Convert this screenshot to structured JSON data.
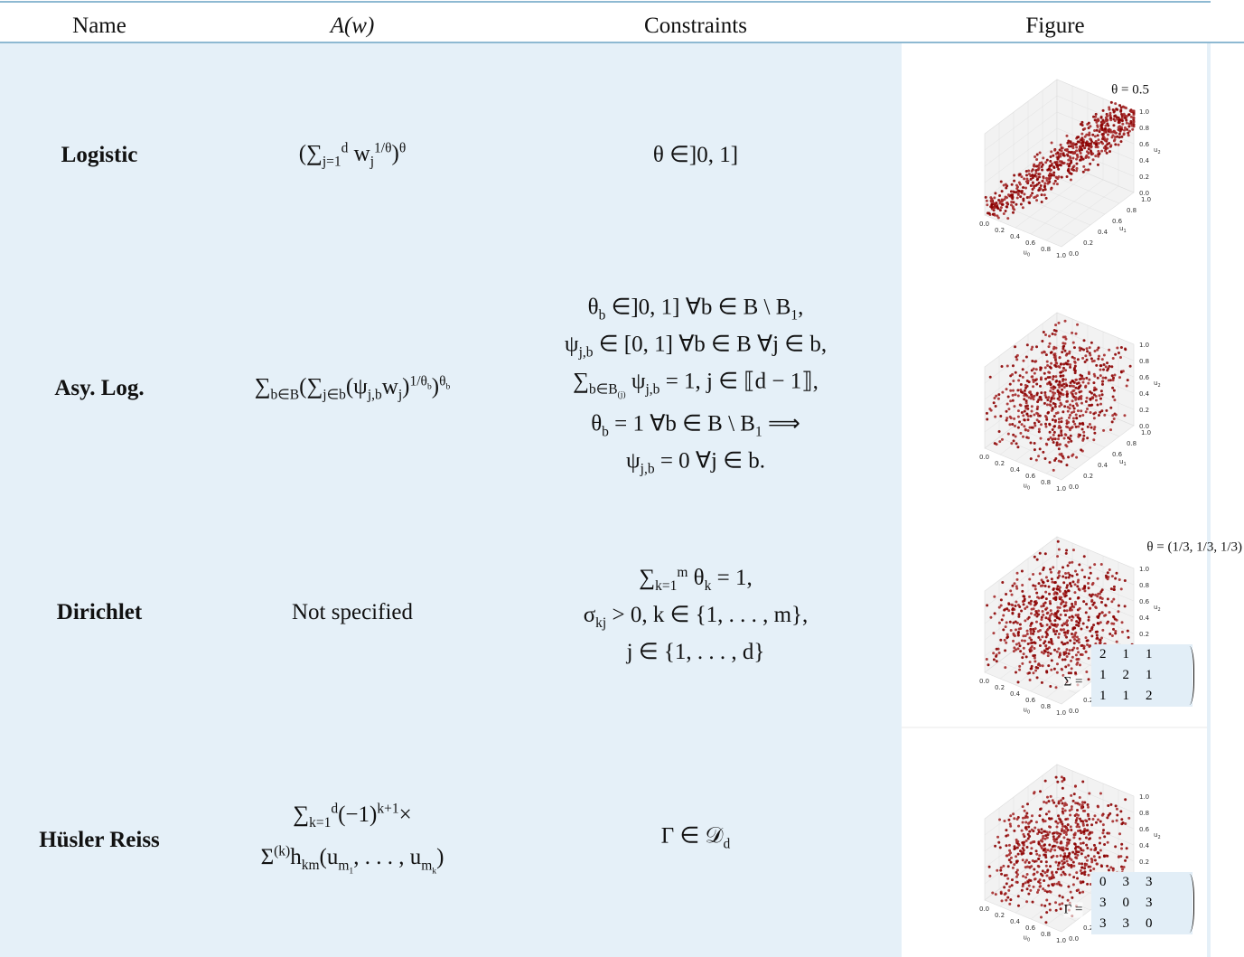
{
  "header": [
    "Name",
    "A(w)",
    "Constraints",
    "Figure"
  ],
  "rows": [
    {
      "name": "Logistic",
      "a": [
        [
          "(",
          "∑",
          {
            "sub": "j=1"
          },
          {
            "sup": "d"
          },
          " w",
          {
            "sub": "j"
          },
          {
            "sup": "1/θ"
          },
          ")",
          {
            "sup": "θ"
          }
        ]
      ],
      "constraints": [
        [
          "θ ∈]0, 1]"
        ]
      ],
      "figure": {
        "annotation": "θ = 0.5",
        "dist": "diagonal"
      }
    },
    {
      "name": "Asy. Log.",
      "a": [
        [
          "∑",
          {
            "sub": "b∈B"
          },
          "(∑",
          {
            "sub": "j∈b"
          },
          "(ψ",
          {
            "sub": "j,b"
          },
          "w",
          {
            "sub": "j"
          },
          ")",
          {
            "sup": [
              "1/θ",
              {
                "sub": "b"
              }
            ]
          },
          ")",
          {
            "sup": [
              "θ",
              {
                "sub": "b"
              }
            ]
          }
        ]
      ],
      "constraints": [
        [
          "θ",
          {
            "sub": "b"
          },
          " ∈]0, 1] ∀b ∈ B \\ B",
          {
            "sub": "1"
          },
          ","
        ],
        [
          "ψ",
          {
            "sub": "j,b"
          },
          " ∈ [0, 1] ∀b ∈ B ∀j ∈ b,"
        ],
        [
          "∑",
          {
            "sub": [
              "b∈B",
              {
                "sub": "(j)"
              }
            ]
          },
          " ψ",
          {
            "sub": "j,b"
          },
          " = 1, j ∈ ⟦d − 1⟧,"
        ],
        [
          "θ",
          {
            "sub": "b"
          },
          " = 1 ∀b ∈ B \\ B",
          {
            "sub": "1"
          },
          " ⟹"
        ],
        [
          "ψ",
          {
            "sub": "j,b"
          },
          " = 0 ∀j ∈ b."
        ]
      ],
      "figure": {
        "dist": "uniform"
      }
    },
    {
      "name": "Dirichlet",
      "a": [
        [
          "Not specified"
        ]
      ],
      "constraints": [
        [
          "∑",
          {
            "sub": "k=1"
          },
          {
            "sup": "m"
          },
          " θ",
          {
            "sub": "k"
          },
          " = 1,"
        ],
        [
          "σ",
          {
            "sub": "kj"
          },
          " > 0, k ∈ {1, . . . , m},"
        ],
        [
          "j ∈ {1, . . . , d}"
        ]
      ],
      "figure": {
        "annotation": "θ = (1/3, 1/3, 1/3)",
        "dist": "uniform",
        "matrix_label": "Σ =",
        "matrix": [
          [
            2,
            1,
            1
          ],
          [
            1,
            2,
            1
          ],
          [
            1,
            1,
            2
          ]
        ]
      }
    },
    {
      "name": "Hüsler Reiss",
      "a": [
        [
          "∑",
          {
            "sub": "k=1"
          },
          {
            "sup": "d"
          },
          "(−1)",
          {
            "sup": "k+1"
          },
          "×"
        ],
        [
          "Σ",
          {
            "sup": "(k)"
          },
          "h",
          {
            "sub": "km"
          },
          "(u",
          {
            "sub": [
              "m",
              {
                "sub": "1"
              }
            ]
          },
          ", . . . , u",
          {
            "sub": [
              "m",
              {
                "sub": "k"
              }
            ]
          },
          ")"
        ]
      ],
      "constraints": [
        [
          "Γ ∈ 𝒟",
          {
            "sub": "d"
          }
        ]
      ],
      "figure": {
        "dist": "uniform",
        "matrix_label": "Γ =",
        "matrix": [
          [
            0,
            3,
            3
          ],
          [
            3,
            0,
            3
          ],
          [
            3,
            3,
            0
          ]
        ]
      }
    }
  ],
  "figure_ticks": [
    "0.0",
    "0.2",
    "0.4",
    "0.6",
    "0.8",
    "1.0"
  ],
  "figure_axis_labels": [
    [
      "u",
      {
        "sub": "0"
      }
    ],
    [
      "u",
      {
        "sub": "1"
      }
    ],
    [
      "u",
      {
        "sub": "2"
      }
    ]
  ]
}
